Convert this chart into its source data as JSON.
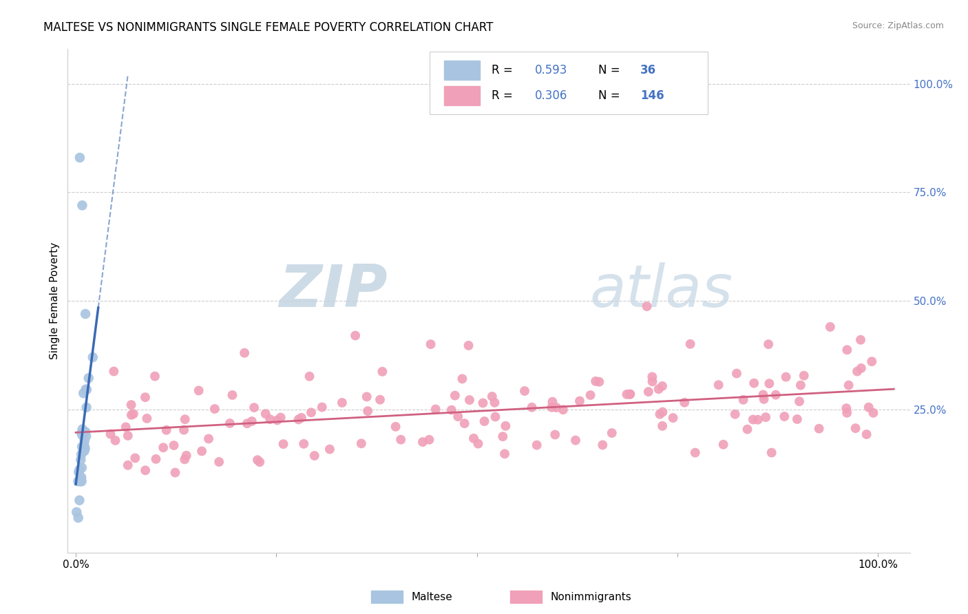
{
  "title": "MALTESE VS NONIMMIGRANTS SINGLE FEMALE POVERTY CORRELATION CHART",
  "source": "Source: ZipAtlas.com",
  "ylabel": "Single Female Poverty",
  "maltese_R": 0.593,
  "maltese_N": 36,
  "nonimm_R": 0.306,
  "nonimm_N": 146,
  "maltese_color": "#a8c4e0",
  "maltese_line_color": "#3a6ab5",
  "nonimm_color": "#f0a0b8",
  "nonimm_line_color": "#d06080",
  "legend_text_color": "#4472c4",
  "grid_color": "#cccccc",
  "watermark_zip_color": "#c8d8e8",
  "watermark_atlas_color": "#b8ccd8"
}
